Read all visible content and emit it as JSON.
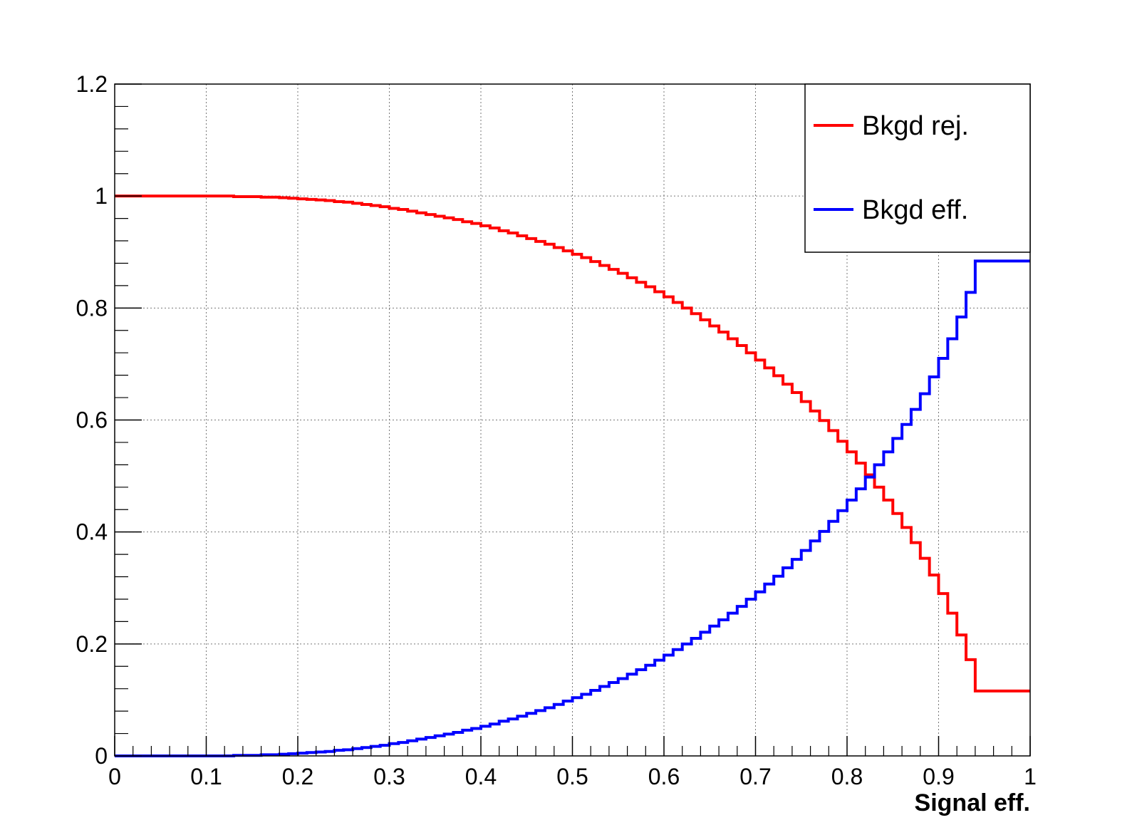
{
  "chart_data": {
    "type": "line",
    "title": "",
    "xlabel": "Signal eff.",
    "ylabel": "",
    "xlim": [
      0,
      1
    ],
    "ylim": [
      0,
      1.2
    ],
    "x_ticks": [
      "0",
      "0.1",
      "0.2",
      "0.3",
      "0.4",
      "0.5",
      "0.6",
      "0.7",
      "0.8",
      "0.9",
      "1"
    ],
    "y_ticks": [
      "0",
      "0.2",
      "0.4",
      "0.6",
      "0.8",
      "1",
      "1.2"
    ],
    "grid": true,
    "legend_position": "top-right",
    "bins": 100,
    "series": [
      {
        "name": "Bkgd rej.",
        "color": "#ff0000",
        "style": "step",
        "values": [
          1.0,
          1.0,
          1.0,
          1.0,
          1.0,
          1.0,
          1.0,
          1.0,
          1.0,
          1.0,
          1.0,
          1.0,
          1.0,
          0.999,
          0.999,
          0.999,
          0.998,
          0.998,
          0.997,
          0.996,
          0.995,
          0.994,
          0.993,
          0.992,
          0.99,
          0.989,
          0.987,
          0.985,
          0.983,
          0.981,
          0.978,
          0.976,
          0.973,
          0.97,
          0.967,
          0.964,
          0.961,
          0.958,
          0.954,
          0.951,
          0.947,
          0.943,
          0.938,
          0.934,
          0.929,
          0.924,
          0.919,
          0.914,
          0.908,
          0.902,
          0.896,
          0.89,
          0.883,
          0.876,
          0.869,
          0.862,
          0.854,
          0.846,
          0.838,
          0.829,
          0.82,
          0.81,
          0.8,
          0.79,
          0.779,
          0.768,
          0.757,
          0.745,
          0.733,
          0.72,
          0.707,
          0.693,
          0.679,
          0.664,
          0.649,
          0.633,
          0.616,
          0.599,
          0.581,
          0.562,
          0.543,
          0.523,
          0.502,
          0.48,
          0.457,
          0.433,
          0.408,
          0.381,
          0.353,
          0.323,
          0.29,
          0.255,
          0.216,
          0.172,
          0.116,
          0.116,
          0.116,
          0.116,
          0.116,
          0.116
        ]
      },
      {
        "name": "Bkgd eff.",
        "color": "#0000ff",
        "style": "step",
        "values": [
          0.0,
          0.0,
          0.0,
          0.0,
          0.0,
          0.0,
          0.0,
          0.0,
          0.0,
          0.0,
          0.0,
          0.0,
          0.0,
          0.001,
          0.001,
          0.001,
          0.002,
          0.002,
          0.003,
          0.004,
          0.005,
          0.006,
          0.007,
          0.008,
          0.01,
          0.011,
          0.013,
          0.015,
          0.017,
          0.019,
          0.022,
          0.024,
          0.027,
          0.03,
          0.033,
          0.036,
          0.039,
          0.042,
          0.046,
          0.049,
          0.053,
          0.057,
          0.062,
          0.066,
          0.071,
          0.076,
          0.081,
          0.086,
          0.092,
          0.098,
          0.104,
          0.11,
          0.117,
          0.124,
          0.131,
          0.138,
          0.146,
          0.154,
          0.162,
          0.171,
          0.18,
          0.19,
          0.2,
          0.21,
          0.221,
          0.232,
          0.243,
          0.255,
          0.267,
          0.28,
          0.293,
          0.307,
          0.321,
          0.336,
          0.351,
          0.367,
          0.384,
          0.401,
          0.419,
          0.438,
          0.457,
          0.477,
          0.498,
          0.52,
          0.543,
          0.567,
          0.592,
          0.619,
          0.647,
          0.677,
          0.71,
          0.745,
          0.784,
          0.828,
          0.884,
          0.884,
          0.884,
          0.884,
          0.884,
          0.884
        ]
      }
    ]
  }
}
